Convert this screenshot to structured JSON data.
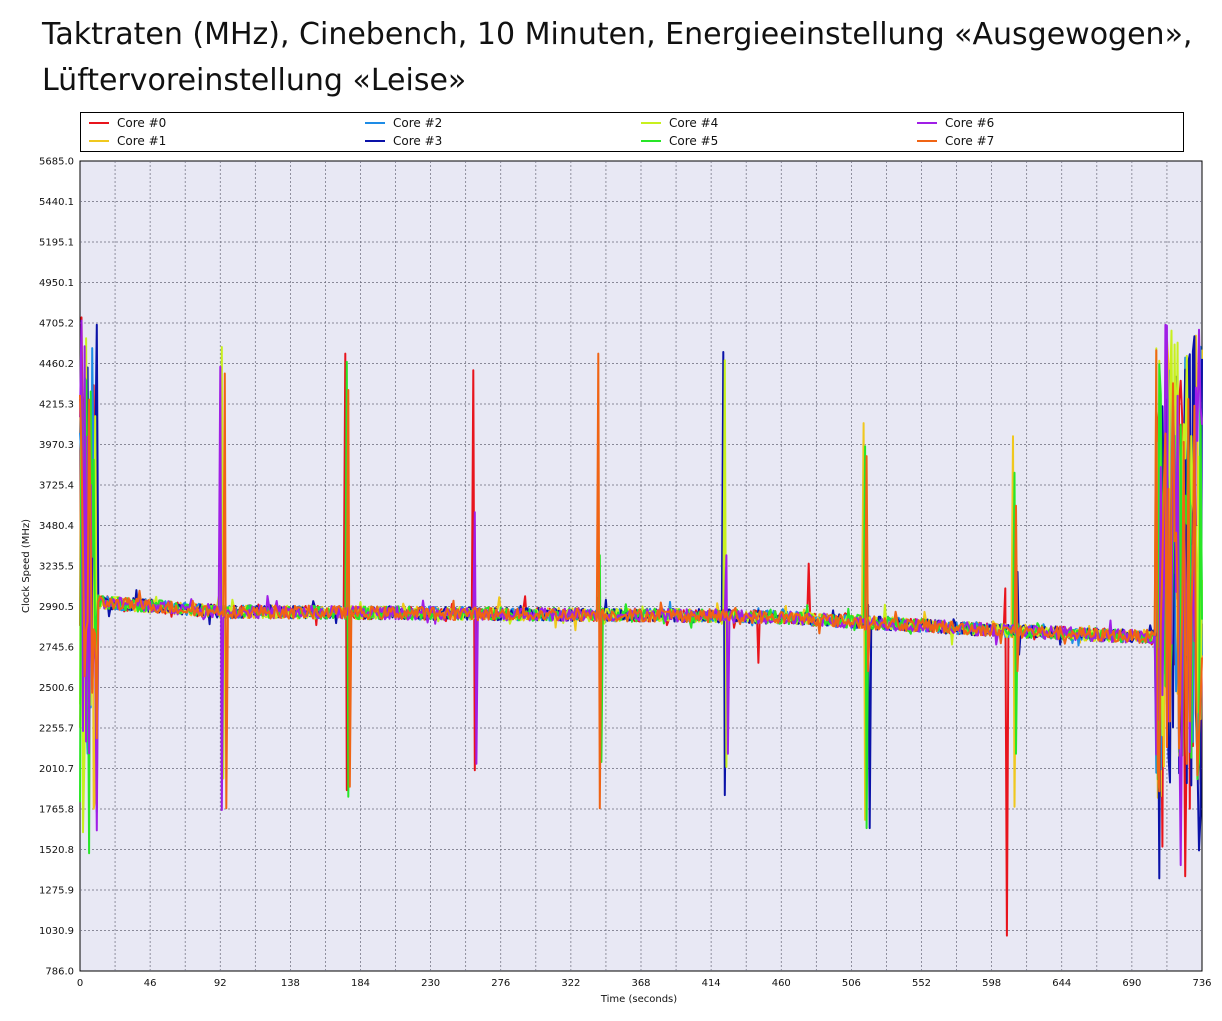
{
  "chart_data": {
    "type": "line",
    "title_line1": "Taktraten (MHz), Cinebench, 10 Minuten, Energieeinstellung «Ausgewogen»,",
    "title_line2": "Lüftervoreinstellung «Leise»",
    "xlabel": "Time (seconds)",
    "ylabel": "Clock Speed (MHz)",
    "xlim": [
      0,
      736
    ],
    "ylim": [
      786.0,
      5685.0
    ],
    "x_ticks": [
      "0",
      "46",
      "92",
      "138",
      "184",
      "230",
      "276",
      "322",
      "368",
      "414",
      "460",
      "506",
      "552",
      "598",
      "644",
      "690",
      "736"
    ],
    "y_ticks": [
      "786.0",
      "1030.9",
      "1275.9",
      "1520.8",
      "1765.8",
      "2010.7",
      "2255.7",
      "2500.6",
      "2745.6",
      "2990.5",
      "3235.5",
      "3480.4",
      "3725.4",
      "3970.3",
      "4215.3",
      "4460.2",
      "4705.2",
      "4950.1",
      "5195.1",
      "5440.1",
      "5685.0"
    ],
    "grid": true,
    "legend_position": "top",
    "series": [
      {
        "name": "Core #0",
        "color": "#e8141c"
      },
      {
        "name": "Core #1",
        "color": "#f0c81e"
      },
      {
        "name": "Core #2",
        "color": "#1e8ce6"
      },
      {
        "name": "Core #3",
        "color": "#0a12a8"
      },
      {
        "name": "Core #4",
        "color": "#c8f01e"
      },
      {
        "name": "Core #5",
        "color": "#28e628"
      },
      {
        "name": "Core #6",
        "color": "#a01ee6"
      },
      {
        "name": "Core #7",
        "color": "#f06414"
      }
    ],
    "baseline": [
      [
        0,
        3000
      ],
      [
        10,
        3020
      ],
      [
        92,
        2960
      ],
      [
        230,
        2950
      ],
      [
        414,
        2935
      ],
      [
        460,
        2925
      ],
      [
        506,
        2900
      ],
      [
        598,
        2850
      ],
      [
        690,
        2810
      ],
      [
        705,
        2810
      ]
    ],
    "spikes": [
      {
        "x": 92,
        "high": 4440,
        "low": 1760,
        "core": 6
      },
      {
        "x": 93,
        "high": 4560,
        "low": 1950,
        "core": 4
      },
      {
        "x": 95,
        "high": 4400,
        "low": 1770,
        "core": 7
      },
      {
        "x": 174,
        "high": 4520,
        "low": 1880,
        "core": 0
      },
      {
        "x": 175,
        "high": 4470,
        "low": 1840,
        "core": 5
      },
      {
        "x": 176,
        "high": 4300,
        "low": 1900,
        "core": 7
      },
      {
        "x": 258,
        "high": 4420,
        "low": 2000,
        "core": 0
      },
      {
        "x": 259,
        "high": 3560,
        "low": 2040,
        "core": 6
      },
      {
        "x": 340,
        "high": 4520,
        "low": 1770,
        "core": 7
      },
      {
        "x": 341,
        "high": 3300,
        "low": 2050,
        "core": 5
      },
      {
        "x": 422,
        "high": 4530,
        "low": 1850,
        "core": 3
      },
      {
        "x": 423,
        "high": 4480,
        "low": 2020,
        "core": 4
      },
      {
        "x": 424,
        "high": 3300,
        "low": 2100,
        "core": 6
      },
      {
        "x": 478,
        "high": 3250,
        "low": 2920,
        "core": 0
      },
      {
        "x": 444,
        "high": 2960,
        "low": 2650,
        "core": 0
      },
      {
        "x": 514,
        "high": 4100,
        "low": 1700,
        "core": 1
      },
      {
        "x": 515,
        "high": 3960,
        "low": 1650,
        "core": 5
      },
      {
        "x": 516,
        "high": 3900,
        "low": 2600,
        "core": 7
      },
      {
        "x": 517,
        "high": 3000,
        "low": 1650,
        "core": 3
      },
      {
        "x": 607,
        "high": 3100,
        "low": 1000,
        "core": 0
      },
      {
        "x": 612,
        "high": 4020,
        "low": 1780,
        "core": 1
      },
      {
        "x": 613,
        "high": 3800,
        "low": 2100,
        "core": 5
      },
      {
        "x": 614,
        "high": 3600,
        "low": 2600,
        "core": 7
      },
      {
        "x": 615,
        "high": 3200,
        "low": 2700,
        "core": 3
      }
    ]
  }
}
